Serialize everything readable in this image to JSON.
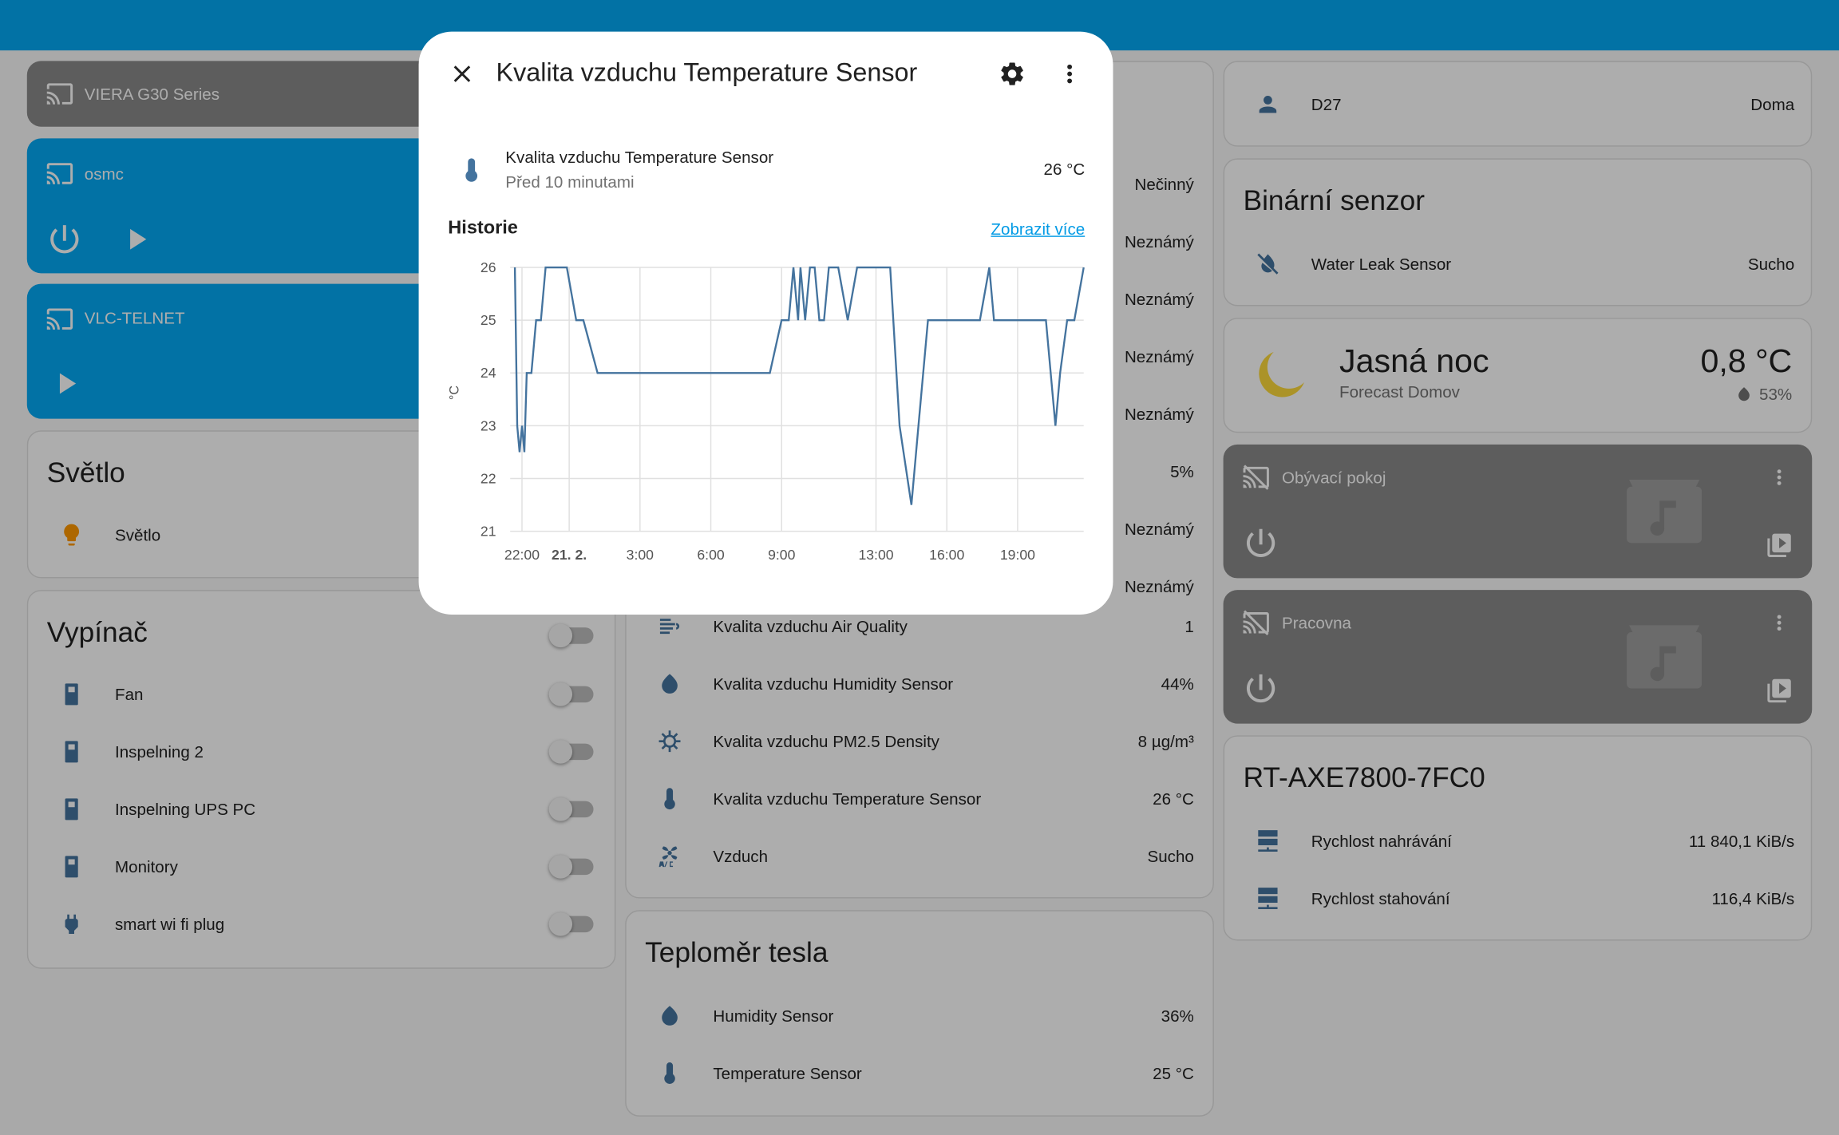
{
  "colors": {
    "primary": "#03a9f4",
    "media_on": "#03a9f4",
    "media_off": "#8a8a8a",
    "state_icon": "#44739e",
    "light_on": "#ff9800",
    "chart_line": "#44739e"
  },
  "media_players": [
    {
      "name": "VIERA G30 Series",
      "state": "off"
    },
    {
      "name": "osmc",
      "state": "on"
    },
    {
      "name": "VLC-TELNET",
      "state": "on"
    }
  ],
  "svetlo": {
    "title": "Světlo",
    "entity": "Světlo"
  },
  "vypinac": {
    "title": "Vypínač",
    "items": [
      "Fan",
      "Inspelning 2",
      "Inspelning UPS PC",
      "Monitory",
      "smart wi fi plug"
    ]
  },
  "middle": {
    "upper_values": [
      "Nečinný",
      "Neznámý",
      "Neznámý",
      "Neznámý",
      "Neznámý",
      "5%",
      "Neznámý",
      "Neznámý"
    ],
    "rows": [
      {
        "label": "Kvalita vzduchu Air Quality",
        "value": "1",
        "icon": "air-quality-icon"
      },
      {
        "label": "Kvalita vzduchu Humidity Sensor",
        "value": "44%",
        "icon": "humidity-icon"
      },
      {
        "label": "Kvalita vzduchu PM2.5 Density",
        "value": "8 µg/m³",
        "icon": "virus-icon"
      },
      {
        "label": "Kvalita vzduchu Temperature Sensor",
        "value": "26 °C",
        "icon": "thermometer-icon"
      },
      {
        "label": "Vzduch",
        "value": "Sucho",
        "icon": "air-conditioner-icon"
      }
    ]
  },
  "teplomer": {
    "title": "Teploměr tesla",
    "rows": [
      {
        "label": "Humidity Sensor",
        "value": "36%"
      },
      {
        "label": "Temperature Sensor",
        "value": "25 °C"
      }
    ]
  },
  "person": {
    "name": "D27",
    "state": "Doma"
  },
  "binary": {
    "title": "Binární senzor",
    "entity": "Water Leak Sensor",
    "state": "Sucho"
  },
  "weather": {
    "condition": "Jasná noc",
    "location": "Forecast Domov",
    "temp": "0,8 °C",
    "humidity": "53%"
  },
  "speakers": [
    {
      "name": "Obývací pokoj"
    },
    {
      "name": "Pracovna"
    }
  ],
  "router": {
    "title": "RT-AXE7800-7FC0",
    "rows": [
      {
        "label": "Rychlost nahrávání",
        "value": "11 840,1 KiB/s"
      },
      {
        "label": "Rychlost stahování",
        "value": "116,4 KiB/s"
      }
    ]
  },
  "dialog": {
    "title": "Kvalita vzduchu Temperature Sensor",
    "entity_name": "Kvalita vzduchu Temperature Sensor",
    "last_changed": "Před 10 minutami",
    "state": "26 °C",
    "history_label": "Historie",
    "show_more": "Zobrazit více"
  },
  "chart_data": {
    "type": "line",
    "ylabel": "°C",
    "ylim": [
      21,
      26
    ],
    "yticks": [
      "26",
      "25",
      "24",
      "23",
      "22",
      "21"
    ],
    "xticks": [
      "22:00",
      "21. 2.",
      "3:00",
      "6:00",
      "9:00",
      "13:00",
      "16:00",
      "19:00"
    ],
    "series": [
      {
        "x_hours": [
          21.7,
          21.8,
          21.9,
          22.0,
          22.1,
          22.2,
          22.4,
          22.6,
          22.8,
          23.0,
          23.3,
          23.6,
          23.9,
          24.3,
          24.6,
          25.2,
          25.8,
          26.0,
          26.5,
          27.0,
          28.0,
          29.0,
          30.0,
          31.0,
          32.0,
          32.5,
          33.0,
          33.2,
          33.3,
          33.5,
          33.7,
          33.8,
          34.0,
          34.2,
          34.4,
          34.6,
          34.8,
          35.0,
          35.4,
          35.8,
          36.2,
          36.6,
          37.0,
          37.6,
          38.0,
          38.5,
          38.8,
          39.2,
          39.4,
          39.8,
          40.2,
          40.6,
          41.0,
          41.4,
          41.8,
          42.0,
          42.2,
          42.6,
          43.0,
          43.6,
          44.2,
          44.6,
          44.8,
          45.1,
          45.4,
          45.8
        ],
        "values": [
          26,
          23,
          22.5,
          23,
          22.5,
          24,
          24,
          25,
          25,
          26,
          26,
          26,
          26,
          25,
          25,
          24,
          24,
          24,
          24,
          24,
          24,
          24,
          24,
          24,
          24,
          24,
          25,
          25,
          25,
          26,
          25,
          26,
          25,
          26,
          26,
          25,
          25,
          26,
          26,
          25,
          26,
          26,
          26,
          26,
          23,
          21.5,
          23,
          25,
          25,
          25,
          25,
          25,
          25,
          25,
          26,
          25,
          25,
          25,
          25,
          25,
          25,
          23,
          24,
          25,
          25,
          26
        ]
      }
    ],
    "grid": true
  }
}
